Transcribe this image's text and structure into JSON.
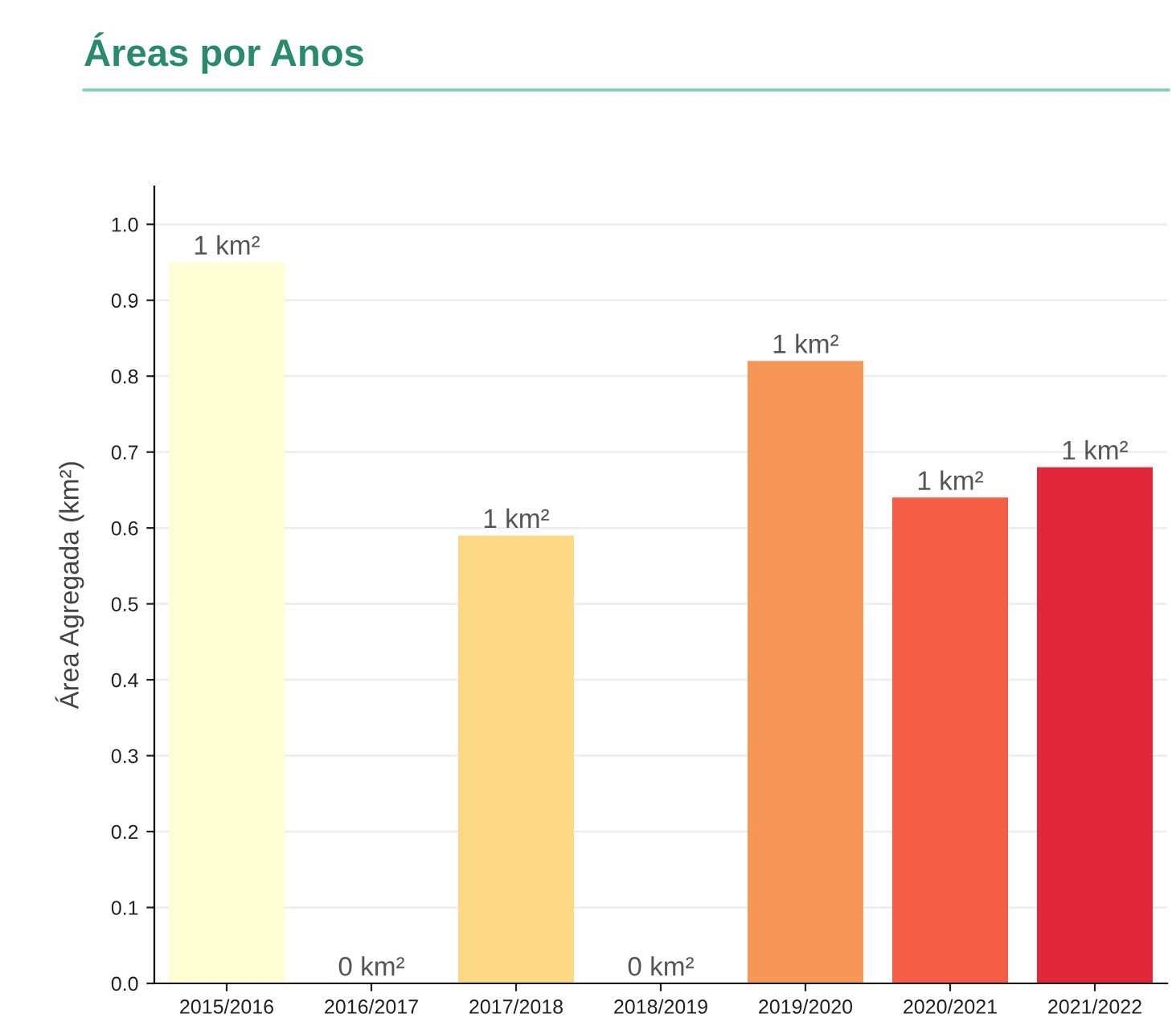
{
  "chart_data": {
    "type": "bar",
    "title": "Áreas por Anos",
    "ylabel": "Área Agregada (km²)",
    "categories": [
      "2015/2016",
      "2016/2017",
      "2017/2018",
      "2018/2019",
      "2019/2020",
      "2020/2021",
      "2021/2022"
    ],
    "values": [
      0.95,
      0,
      0.59,
      0,
      0.82,
      0.64,
      0.68
    ],
    "colors": [
      "#fdfed4",
      "#fee18f",
      "#fdd985",
      "#fdb56a",
      "#f69757",
      "#f55d47",
      "#e0283a"
    ],
    "value_labels": [
      "1 km²",
      "0 km²",
      "1 km²",
      "0 km²",
      "1 km²",
      "1 km²",
      "1 km²"
    ],
    "ylim": [
      0,
      1.05
    ],
    "yticks": [
      {
        "value": 0,
        "label": "0.0"
      },
      {
        "value": 0.1,
        "label": "0.1"
      },
      {
        "value": 0.2,
        "label": "0.2"
      },
      {
        "value": 0.3,
        "label": "0.3"
      },
      {
        "value": 0.4,
        "label": "0.4"
      },
      {
        "value": 0.5,
        "label": "0.5"
      },
      {
        "value": 0.6,
        "label": "0.6"
      },
      {
        "value": 0.7,
        "label": "0.7"
      },
      {
        "value": 0.8,
        "label": "0.8"
      },
      {
        "value": 0.9,
        "label": "0.9"
      },
      {
        "value": 1.0,
        "label": "1.0"
      }
    ],
    "grid": "y"
  }
}
